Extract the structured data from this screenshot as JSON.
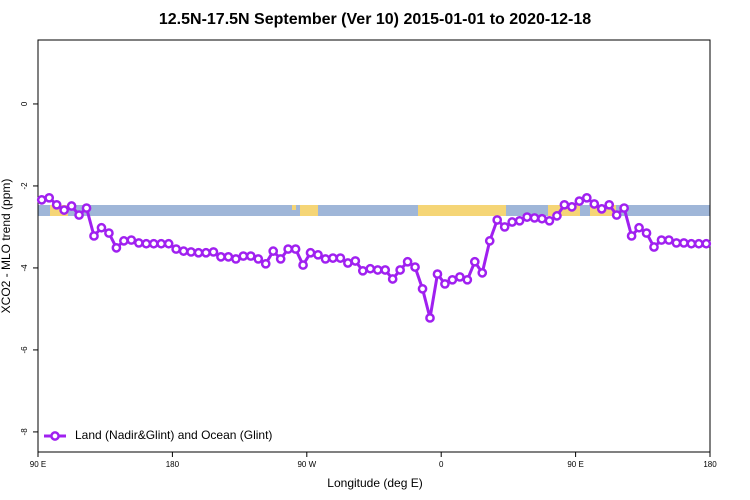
{
  "chart_data": {
    "type": "line",
    "title": "12.5N-17.5N September (Ver 10)   2015-01-01 to 2020-12-18",
    "x_label": "Longitude (deg E)",
    "y_label": "XCO2 - MLO trend (ppm)",
    "xlim": [
      90,
      540
    ],
    "xticks": [
      {
        "value": 90,
        "label": "90 E"
      },
      180,
      {
        "value": 270,
        "label": "90 W"
      },
      {
        "value": 360,
        "label": "0"
      },
      {
        "value": 450,
        "label": "90 E"
      },
      {
        "value": 540,
        "label": "180"
      }
    ],
    "ylim": [
      -8.49,
      1.56
    ],
    "yticks": [
      -8,
      -6,
      -4,
      -2,
      0
    ],
    "legend": "bottomleft",
    "x": [
      92.5,
      97.5,
      102.5,
      107.5,
      112.5,
      117.5,
      122.5,
      127.5,
      132.5,
      137.5,
      142.5,
      147.5,
      152.5,
      157.5,
      162.5,
      167.5,
      172.5,
      177.5,
      182.5,
      187.5,
      192.5,
      197.5,
      202.5,
      207.5,
      212.5,
      217.5,
      222.5,
      227.5,
      232.5,
      237.5,
      242.5,
      247.5,
      252.5,
      257.5,
      262.5,
      267.5,
      272.5,
      277.5,
      282.5,
      287.5,
      292.5,
      297.5,
      302.5,
      307.5,
      312.5,
      317.5,
      322.5,
      327.5,
      332.5,
      337.5,
      342.5,
      347.5,
      352.5,
      357.5,
      362.5,
      367.5,
      372.5,
      377.5,
      382.5,
      387.5,
      392.5,
      397.5,
      402.5,
      407.5,
      412.5,
      417.5,
      422.5,
      427.5,
      432.5,
      437.5,
      442.5,
      447.5,
      452.5,
      457.5,
      462.5,
      467.5,
      472.5,
      477.5,
      482.5,
      487.5,
      492.5,
      497.5,
      502.5,
      507.5,
      512.5,
      517.5,
      522.5,
      527.5,
      532.5,
      537.5
    ],
    "series": [
      {
        "name": "Land (Nadir&Glint) and Ocean (Glint)",
        "color": "#a020f0",
        "values": [
          -2.34,
          -2.29,
          -2.46,
          -2.59,
          -2.49,
          -2.71,
          -2.54,
          -3.22,
          -3.02,
          -3.15,
          -3.51,
          -3.34,
          -3.32,
          -3.39,
          -3.41,
          -3.41,
          -3.41,
          -3.41,
          -3.54,
          -3.59,
          -3.61,
          -3.63,
          -3.63,
          -3.61,
          -3.73,
          -3.73,
          -3.78,
          -3.71,
          -3.71,
          -3.78,
          -3.9,
          -3.59,
          -3.78,
          -3.54,
          -3.54,
          -3.93,
          -3.63,
          -3.68,
          -3.78,
          -3.76,
          -3.76,
          -3.88,
          -3.83,
          -4.07,
          -4.02,
          -4.05,
          -4.05,
          -4.27,
          -4.05,
          -3.85,
          -3.98,
          -4.51,
          -5.22,
          -4.15,
          -4.39,
          -4.29,
          -4.22,
          -4.29,
          -3.85,
          -4.12,
          -3.34,
          -2.83,
          -3.0,
          -2.88,
          -2.85,
          -2.76,
          -2.78,
          -2.8,
          -2.85,
          -2.73,
          -2.46,
          -2.51,
          -2.37,
          -2.29,
          -2.44,
          -2.56,
          -2.46,
          -2.71,
          -2.54,
          -3.22,
          -3.02,
          -3.15,
          -3.49,
          -3.32,
          -3.32,
          -3.39,
          -3.39,
          -3.41,
          -3.41,
          -3.41
        ]
      }
    ]
  }
}
